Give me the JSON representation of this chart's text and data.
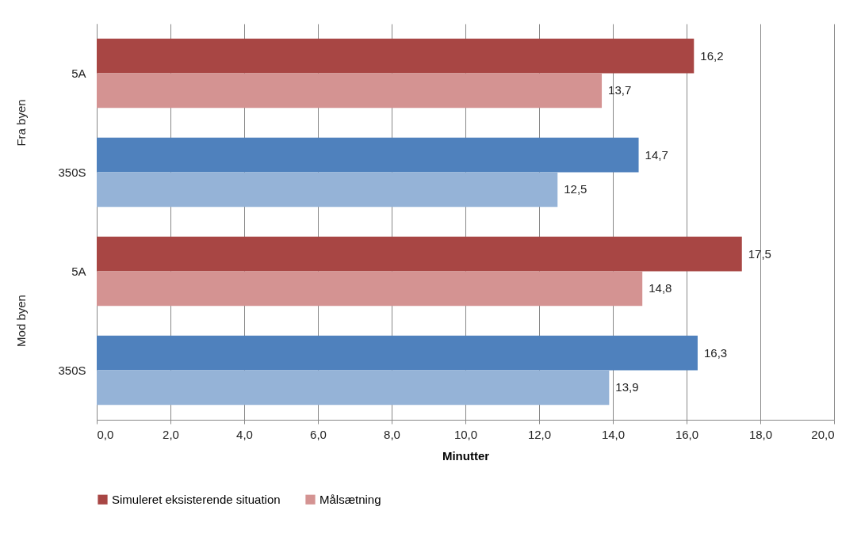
{
  "chart_data": {
    "type": "bar",
    "orientation": "horizontal",
    "categories": [
      "5A",
      "350S",
      "5A",
      "350S"
    ],
    "series": [
      {
        "name": "Simuleret eksisterende situation",
        "color": "#a84644",
        "colors": [
          "#a84644",
          "#4f81bd",
          "#a84644",
          "#4f81bd"
        ],
        "values": [
          16.2,
          14.7,
          17.5,
          16.3
        ],
        "value_labels": [
          "16,2",
          "14,7",
          "17,5",
          "16,3"
        ]
      },
      {
        "name": "Målsætning",
        "color": "#d49392",
        "colors": [
          "#d49392",
          "#95b3d7",
          "#d49392",
          "#95b3d7"
        ],
        "values": [
          13.7,
          12.5,
          14.8,
          13.9
        ],
        "value_labels": [
          "13,7",
          "12,5",
          "14,8",
          "13,9"
        ]
      }
    ],
    "annotations": [
      "Fra byen",
      "Mod byen"
    ],
    "xlabel": "Minutter",
    "xlim": [
      0,
      20
    ],
    "xticks": [
      {
        "value": 0,
        "label": "0,0"
      },
      {
        "value": 2,
        "label": "2,0"
      },
      {
        "value": 4,
        "label": "4,0"
      },
      {
        "value": 6,
        "label": "6,0"
      },
      {
        "value": 8,
        "label": "8,0"
      },
      {
        "value": 10,
        "label": "10,0"
      },
      {
        "value": 12,
        "label": "12,0"
      },
      {
        "value": 14,
        "label": "14,0"
      },
      {
        "value": 16,
        "label": "16,0"
      },
      {
        "value": 18,
        "label": "18,0"
      },
      {
        "value": 20,
        "label": "20,0"
      }
    ],
    "grid": "x",
    "legend": "bottom"
  }
}
